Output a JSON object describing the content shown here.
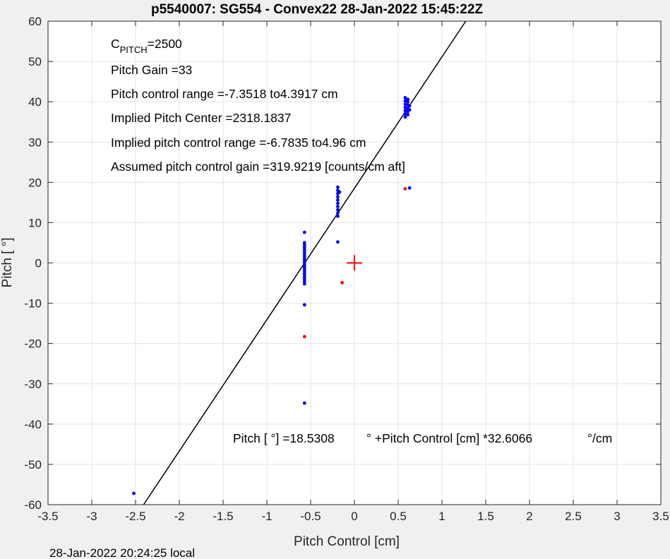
{
  "chart_data": {
    "type": "scatter",
    "title": "p5540007: SG554 - Convex22 28-Jan-2022 15:45:22Z",
    "xlabel": "Pitch Control [cm]",
    "ylabel": "Pitch [ °]",
    "xlim": [
      -3.5,
      3.5
    ],
    "ylim": [
      -60,
      60
    ],
    "xticks": [
      -3.5,
      -3,
      -2.5,
      -2,
      -1.5,
      -1,
      -0.5,
      0,
      0.5,
      1,
      1.5,
      2,
      2.5,
      3,
      3.5
    ],
    "yticks": [
      -60,
      -50,
      -40,
      -30,
      -20,
      -10,
      0,
      10,
      20,
      30,
      40,
      50,
      60
    ],
    "grid": true,
    "colors": {
      "inliers": "#0000ff",
      "outliers": "#ff0000",
      "fit": "#000000",
      "center_marker": "#ff0000"
    },
    "fit_line": {
      "intercept": 18.5308,
      "slope": 32.6066
    },
    "center_marker": {
      "x": 0,
      "y": 0
    },
    "series": [
      {
        "points": [
          [
            -2.52,
            -57.2
          ],
          [
            -0.57,
            -34.8
          ],
          [
            -0.57,
            -10.4
          ],
          [
            -0.57,
            7.6
          ],
          [
            -0.57,
            -5.2
          ],
          [
            -0.57,
            -4.6
          ],
          [
            -0.57,
            -4.0
          ],
          [
            -0.57,
            -3.4
          ],
          [
            -0.57,
            -2.8
          ],
          [
            -0.57,
            -2.2
          ],
          [
            -0.57,
            -1.6
          ],
          [
            -0.57,
            -1.0
          ],
          [
            -0.57,
            -0.4
          ],
          [
            -0.57,
            0.2
          ],
          [
            -0.57,
            0.8
          ],
          [
            -0.57,
            1.4
          ],
          [
            -0.57,
            2.0
          ],
          [
            -0.57,
            2.6
          ],
          [
            -0.57,
            3.2
          ],
          [
            -0.57,
            3.8
          ],
          [
            -0.57,
            4.4
          ],
          [
            -0.57,
            5.0
          ],
          [
            -0.19,
            5.2
          ],
          [
            -0.19,
            11.6
          ],
          [
            -0.19,
            12.4
          ],
          [
            -0.19,
            13.2
          ],
          [
            -0.19,
            14.0
          ],
          [
            -0.19,
            14.8
          ],
          [
            -0.19,
            15.6
          ],
          [
            -0.19,
            16.4
          ],
          [
            -0.19,
            17.2
          ],
          [
            -0.19,
            18.0
          ],
          [
            -0.19,
            18.8
          ],
          [
            -0.17,
            17.6
          ],
          [
            0.58,
            36.2
          ],
          [
            0.58,
            37.0
          ],
          [
            0.58,
            37.8
          ],
          [
            0.58,
            38.6
          ],
          [
            0.58,
            39.4
          ],
          [
            0.58,
            40.2
          ],
          [
            0.58,
            41.0
          ],
          [
            0.61,
            36.8
          ],
          [
            0.61,
            37.6
          ],
          [
            0.61,
            38.4
          ],
          [
            0.61,
            39.2
          ],
          [
            0.61,
            40.0
          ],
          [
            0.61,
            40.6
          ],
          [
            0.63,
            38.0
          ],
          [
            0.63,
            39.0
          ],
          [
            0.63,
            18.6
          ]
        ]
      },
      {
        "points": [
          [
            -0.57,
            -18.3
          ],
          [
            -0.14,
            -4.9
          ],
          [
            0.58,
            18.4
          ]
        ]
      }
    ],
    "annotations": [
      "Pitch Gain =33",
      "Pitch control range =-7.3518 to4.3917 cm",
      "Implied Pitch Center =2318.1837",
      "Implied pitch control range =-6.7835 to4.96 cm",
      "Assumed pitch control gain =319.9219 [counts/cm aft]"
    ],
    "cpitch": {
      "base": "C",
      "sub": "PITCH",
      "value": "=2500"
    },
    "equation": {
      "part1": "Pitch [  °] =18.5308",
      "part2": "° +Pitch Control [cm] *32.6066",
      "part3": "°/cm"
    },
    "footer": "28-Jan-2022 20:24:25 local"
  }
}
